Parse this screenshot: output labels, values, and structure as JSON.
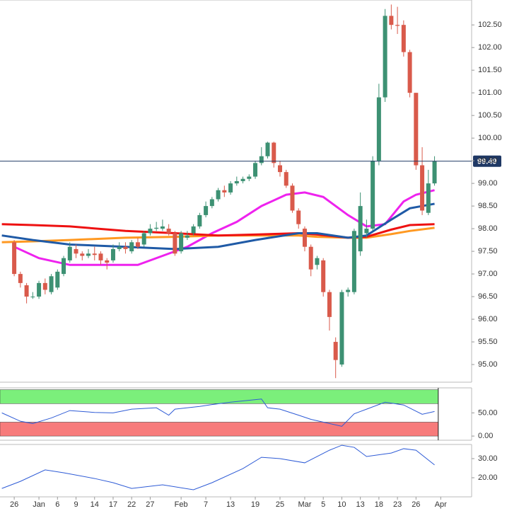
{
  "chart_data": [
    {
      "type": "candlestick",
      "xlim": [
        -2.3,
        74
      ],
      "ylim": [
        94.61,
        103.05
      ],
      "yticks": [
        {
          "value": 95,
          "label": "95.00"
        },
        {
          "value": 95.5,
          "label": "95.50"
        },
        {
          "value": 96,
          "label": "96.00"
        },
        {
          "value": 96.5,
          "label": "96.50"
        },
        {
          "value": 97,
          "label": "97.00"
        },
        {
          "value": 97.5,
          "label": "97.50"
        },
        {
          "value": 98,
          "label": "98.00"
        },
        {
          "value": 98.5,
          "label": "98.50"
        },
        {
          "value": 99,
          "label": "99.00"
        },
        {
          "value": 99.5,
          "label": "99.50"
        },
        {
          "value": 100,
          "label": "100.00"
        },
        {
          "value": 100.5,
          "label": "100.50"
        },
        {
          "value": 101,
          "label": "101.00"
        },
        {
          "value": 101.5,
          "label": "101.50"
        },
        {
          "value": 102,
          "label": "102.00"
        },
        {
          "value": 102.5,
          "label": "102.50"
        }
      ],
      "up_color": "#3d9173",
      "down_color": "#d95a4b",
      "last_price": 99.49,
      "last_price_color": "#1f3864",
      "open": [
        97.7,
        97.0,
        96.75,
        96.5,
        96.5,
        96.8,
        96.6,
        96.7,
        97.0,
        97.3,
        97.55,
        97.45,
        97.4,
        97.45,
        97.45,
        97.3,
        97.3,
        97.55,
        97.6,
        97.5,
        97.7,
        97.65,
        97.9,
        98.0,
        98.0,
        98.0,
        97.9,
        97.5,
        97.8,
        97.9,
        98.05,
        98.3,
        98.5,
        98.65,
        98.85,
        98.8,
        99.0,
        99.05,
        99.1,
        99.15,
        99.45,
        99.6,
        99.9,
        99.4,
        99.25,
        98.95,
        98.4,
        98.0,
        97.6,
        97.2,
        97.3,
        96.6,
        95.5,
        95.0,
        96.6,
        96.6,
        97.5,
        97.9,
        98.0,
        99.5,
        100.9,
        102.7,
        102.5,
        102.5,
        101.9,
        101.0,
        99.4,
        98.35,
        99.0
      ],
      "high": [
        97.75,
        97.05,
        96.8,
        96.6,
        96.85,
        96.9,
        97.0,
        97.1,
        97.4,
        97.7,
        97.65,
        97.5,
        97.55,
        97.6,
        97.5,
        97.35,
        97.65,
        97.7,
        97.7,
        97.75,
        97.8,
        97.95,
        98.1,
        98.15,
        98.2,
        98.1,
        97.95,
        97.95,
        97.95,
        98.1,
        98.35,
        98.6,
        98.7,
        98.9,
        98.95,
        99.05,
        99.15,
        99.15,
        99.2,
        99.5,
        99.8,
        99.92,
        99.92,
        99.5,
        99.3,
        99.0,
        98.45,
        98.05,
        97.65,
        97.4,
        97.35,
        96.65,
        95.6,
        96.65,
        96.7,
        98.0,
        98.8,
        98.2,
        99.6,
        101.2,
        102.85,
        102.95,
        102.9,
        102.6,
        101.95,
        101.0,
        99.8,
        99.3,
        99.6
      ],
      "low": [
        96.95,
        96.7,
        96.35,
        96.45,
        96.45,
        96.55,
        96.55,
        96.65,
        96.95,
        97.25,
        97.35,
        97.3,
        97.35,
        97.3,
        97.2,
        97.1,
        97.25,
        97.5,
        97.45,
        97.45,
        97.55,
        97.6,
        97.85,
        97.95,
        97.95,
        97.85,
        97.4,
        97.45,
        97.75,
        97.85,
        98.0,
        98.25,
        98.45,
        98.6,
        98.7,
        98.75,
        98.95,
        99.0,
        99.05,
        99.1,
        99.4,
        99.55,
        99.35,
        99.15,
        98.9,
        98.35,
        98.0,
        97.5,
        96.95,
        97.1,
        96.5,
        95.75,
        94.7,
        94.95,
        96.5,
        96.55,
        97.4,
        97.8,
        97.95,
        99.4,
        100.8,
        102.4,
        102.3,
        101.8,
        100.9,
        99.3,
        98.3,
        98.3,
        98.95
      ],
      "close": [
        97.0,
        96.8,
        96.5,
        96.5,
        96.8,
        96.65,
        96.95,
        97.05,
        97.35,
        97.6,
        97.45,
        97.4,
        97.45,
        97.42,
        97.3,
        97.25,
        97.55,
        97.6,
        97.55,
        97.7,
        97.6,
        97.9,
        98.0,
        98.02,
        98.05,
        97.9,
        97.45,
        97.9,
        97.85,
        98.05,
        98.3,
        98.5,
        98.65,
        98.85,
        98.8,
        99.0,
        99.05,
        99.1,
        99.15,
        99.45,
        99.6,
        99.9,
        99.45,
        99.25,
        98.95,
        98.4,
        98.1,
        97.6,
        97.1,
        97.35,
        96.6,
        96.05,
        95.1,
        96.6,
        96.65,
        97.95,
        98.5,
        98.0,
        99.5,
        100.9,
        102.7,
        102.5,
        102.48,
        101.9,
        101.0,
        99.4,
        98.4,
        99.0,
        99.49
      ],
      "overlays": [
        {
          "color": "#ee22ee",
          "x": [
            0,
            4,
            9,
            14,
            20,
            24,
            28,
            32,
            36,
            40,
            44,
            47,
            50,
            54,
            57,
            60,
            63,
            65,
            68
          ],
          "values": [
            97.6,
            97.35,
            97.2,
            97.2,
            97.2,
            97.4,
            97.6,
            97.9,
            98.15,
            98.5,
            98.75,
            98.8,
            98.7,
            98.3,
            98.05,
            98.1,
            98.6,
            98.75,
            98.85
          ]
        },
        {
          "color": "#ff9922",
          "x": [
            -2,
            3,
            9,
            18,
            26,
            33,
            39,
            46,
            49,
            54,
            57,
            61,
            64,
            68
          ],
          "values": [
            97.7,
            97.72,
            97.75,
            97.8,
            97.82,
            97.85,
            97.85,
            97.85,
            97.82,
            97.8,
            97.8,
            97.88,
            97.95,
            98.02
          ]
        },
        {
          "color": "#ee1111",
          "x": [
            -2,
            3,
            9,
            18,
            26,
            33,
            39,
            46,
            49,
            54,
            57,
            61,
            64,
            68
          ],
          "values": [
            98.1,
            98.08,
            98.05,
            97.95,
            97.9,
            97.85,
            97.87,
            97.9,
            97.87,
            97.8,
            97.82,
            97.98,
            98.08,
            98.1
          ]
        },
        {
          "color": "#1f5aa6",
          "x": [
            -2,
            3,
            9,
            18,
            26,
            33,
            39,
            46,
            49,
            54,
            57,
            61,
            64,
            68
          ],
          "values": [
            97.85,
            97.75,
            97.65,
            97.6,
            97.55,
            97.6,
            97.75,
            97.9,
            97.9,
            97.8,
            97.85,
            98.2,
            98.45,
            98.55
          ]
        }
      ]
    },
    {
      "type": "line",
      "ylim": [
        -9,
        104
      ],
      "yticks": [
        {
          "value": 0,
          "label": "0.00"
        },
        {
          "value": 50,
          "label": "50.00"
        }
      ],
      "bands": [
        {
          "range": [
            70,
            100
          ],
          "color": "#7bef7b"
        },
        {
          "range": [
            0,
            30
          ],
          "color": "#f77b7b"
        }
      ],
      "band_end": 68.6,
      "series": [
        {
          "color": "#2e5bd6",
          "x": [
            -2,
            1,
            3,
            6,
            9,
            13,
            16,
            19,
            23,
            25,
            26,
            30,
            32,
            35,
            40,
            41,
            43,
            46,
            48,
            51,
            53,
            55,
            57,
            60,
            63,
            66,
            68
          ],
          "values": [
            50,
            32,
            27,
            39,
            55,
            51,
            50,
            58,
            61,
            45,
            58,
            64,
            68,
            73,
            80,
            61,
            58,
            45,
            36,
            27,
            21,
            48,
            58,
            73,
            67,
            47,
            53
          ]
        }
      ]
    },
    {
      "type": "line",
      "ylim": [
        10,
        37.4
      ],
      "yticks": [
        {
          "value": 20,
          "label": "20.00"
        },
        {
          "value": 30,
          "label": "30.00"
        }
      ],
      "series": [
        {
          "color": "#2e5bd6",
          "x": [
            -2,
            1,
            5,
            8,
            13,
            16,
            19,
            24,
            29,
            32,
            37,
            40,
            43,
            47,
            51,
            53,
            55,
            57,
            61,
            63,
            65,
            68
          ],
          "values": [
            14.4,
            18.1,
            24.1,
            22.6,
            19.6,
            17.4,
            14.4,
            16.3,
            13.7,
            17.4,
            24.8,
            30.7,
            30,
            27.8,
            34.4,
            37,
            35.9,
            31.1,
            32.9,
            35.2,
            34.4,
            26.7
          ]
        }
      ],
      "xticks": [
        {
          "value": 0,
          "label": "26"
        },
        {
          "value": 4,
          "label": "Jan"
        },
        {
          "value": 7,
          "label": "6"
        },
        {
          "value": 10,
          "label": "9"
        },
        {
          "value": 13,
          "label": "14"
        },
        {
          "value": 16,
          "label": "17"
        },
        {
          "value": 19,
          "label": "22"
        },
        {
          "value": 22,
          "label": "27"
        },
        {
          "value": 27,
          "label": "Feb"
        },
        {
          "value": 31,
          "label": "7"
        },
        {
          "value": 35,
          "label": "13"
        },
        {
          "value": 39,
          "label": "19"
        },
        {
          "value": 43,
          "label": "25"
        },
        {
          "value": 47,
          "label": "Mar"
        },
        {
          "value": 50,
          "label": "5"
        },
        {
          "value": 53,
          "label": "10"
        },
        {
          "value": 56,
          "label": "13"
        },
        {
          "value": 59,
          "label": "18"
        },
        {
          "value": 62,
          "label": "23"
        },
        {
          "value": 65,
          "label": "26"
        },
        {
          "value": 69,
          "label": "Apr"
        }
      ]
    }
  ]
}
